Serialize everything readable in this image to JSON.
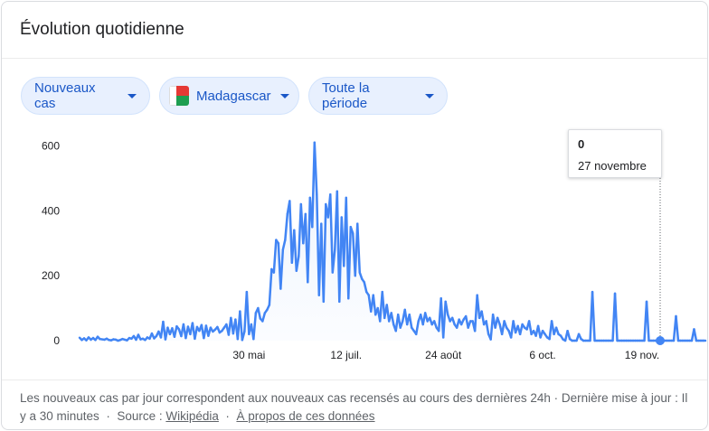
{
  "card": {
    "title": "Évolution quotidienne"
  },
  "filters": {
    "metric": "Nouveaux cas",
    "country": "Madagascar",
    "period": "Toute la période"
  },
  "tooltip": {
    "value": "0",
    "date": "27 novembre"
  },
  "footer": {
    "description": "Les nouveaux cas par jour correspondent aux nouveaux cas recensés au cours des dernières 24h · Dernière mise à jour : Il y a 30 minutes",
    "sep1": "·",
    "source_label": "Source :",
    "source_link": "Wikipédia",
    "sep2": "·",
    "about_link": "À propos de ces données"
  },
  "colors": {
    "line": "#4285f4",
    "chip_bg": "#e8f0fe",
    "chip_text": "#1a57c7"
  },
  "chart_data": {
    "type": "line",
    "title": "",
    "xlabel": "",
    "ylabel": "",
    "ylim": [
      0,
      640
    ],
    "yticks": [
      0,
      200,
      400,
      600
    ],
    "ytick_labels": [
      "0",
      "200",
      "400",
      "600"
    ],
    "xticks": [
      75,
      118,
      161,
      205,
      249
    ],
    "xtick_labels": [
      "30 mai",
      "12 juil.",
      "24 août",
      "6 oct.",
      "19 nov."
    ],
    "x_start": 0,
    "x_end": 257,
    "grid": false,
    "legend": "none",
    "highlight_index": 257,
    "series": [
      {
        "values": [
          9,
          2,
          7,
          1,
          10,
          3,
          8,
          2,
          12,
          5,
          4,
          3,
          6,
          2,
          1,
          4,
          3,
          0,
          2,
          5,
          3,
          1,
          8,
          6,
          14,
          3,
          18,
          4,
          6,
          2,
          10,
          6,
          22,
          7,
          14,
          28,
          10,
          58,
          4,
          40,
          20,
          38,
          12,
          44,
          35,
          14,
          50,
          8,
          43,
          20,
          54,
          6,
          42,
          30,
          48,
          8,
          46,
          15,
          40,
          28,
          34,
          42,
          25,
          30,
          40,
          50,
          18,
          70,
          22,
          65,
          5,
          90,
          2,
          28,
          150,
          20,
          50,
          5,
          85,
          100,
          68,
          60,
          85,
          95,
          110,
          220,
          210,
          310,
          300,
          160,
          280,
          310,
          390,
          430,
          240,
          340,
          215,
          260,
          420,
          300,
          390,
          180,
          440,
          350,
          610,
          450,
          140,
          360,
          120,
          420,
          380,
          450,
          210,
          280,
          460,
          120,
          380,
          230,
          440,
          130,
          350,
          330,
          200,
          360,
          210,
          190,
          180,
          150,
          140,
          90,
          140,
          80,
          100,
          60,
          150,
          70,
          110,
          60,
          85,
          50,
          30,
          80,
          40,
          60,
          95,
          50,
          80,
          40,
          30,
          20,
          60,
          80,
          50,
          85,
          60,
          70,
          50,
          60,
          40,
          30,
          130,
          10,
          120,
          80,
          60,
          70,
          50,
          40,
          65,
          50,
          65,
          75,
          40,
          60,
          60,
          30,
          140,
          70,
          90,
          50,
          60,
          20,
          4,
          80,
          40,
          70,
          50,
          20,
          60,
          40,
          30,
          10,
          60,
          25,
          45,
          20,
          50,
          40,
          35,
          60,
          20,
          30,
          15,
          45,
          10,
          30,
          20,
          10,
          5,
          60,
          20,
          40,
          20,
          15,
          4,
          0,
          30,
          5,
          0,
          0,
          0,
          20,
          5,
          0,
          0,
          0,
          0,
          150,
          0,
          0,
          0,
          0,
          0,
          0,
          0,
          0,
          0,
          145,
          0,
          0,
          0,
          0,
          0,
          0,
          0,
          0,
          0,
          0,
          0,
          0,
          0,
          120,
          0,
          0,
          0,
          0,
          0,
          0,
          0,
          0,
          0,
          0,
          0,
          0,
          75,
          0,
          0,
          0,
          0,
          0,
          0,
          0,
          35,
          0,
          0,
          0,
          0,
          0
        ]
      }
    ]
  }
}
